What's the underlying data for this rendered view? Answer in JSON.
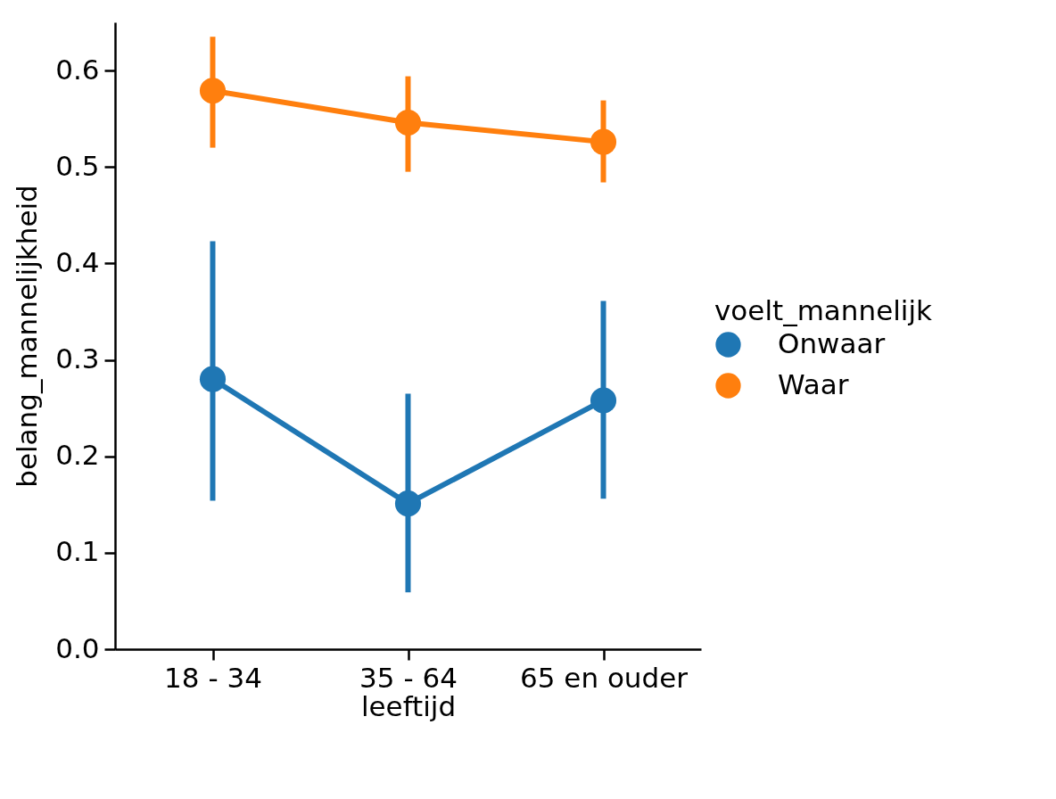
{
  "chart_data": {
    "type": "line",
    "categories": [
      "18 - 34",
      "35 - 64",
      "65 en ouder"
    ],
    "xlabel": "leeftijd",
    "ylabel": "belang_mannelijkheid",
    "legend_title": "voelt_mannelijk",
    "ylim": [
      0,
      0.65
    ],
    "yticks": [
      {
        "value": 0,
        "label": "0.0"
      },
      0.1,
      0.2,
      0.3,
      0.4,
      0.5,
      0.6
    ],
    "grid": false,
    "legend": "right",
    "marker": "circle",
    "line_style": "solid",
    "series": [
      {
        "name": "Onwaar",
        "color": "#1f77b4",
        "values": [
          0.28,
          0.151,
          0.258
        ],
        "errors": [
          [
            0.154,
            0.423
          ],
          [
            0.059,
            0.265
          ],
          [
            0.156,
            0.361
          ]
        ]
      },
      {
        "name": "Waar",
        "color": "#ff7f0e",
        "values": [
          0.579,
          0.546,
          0.526
        ],
        "errors": [
          [
            0.52,
            0.635
          ],
          [
            0.495,
            0.594
          ],
          [
            0.484,
            0.569
          ]
        ]
      }
    ]
  }
}
